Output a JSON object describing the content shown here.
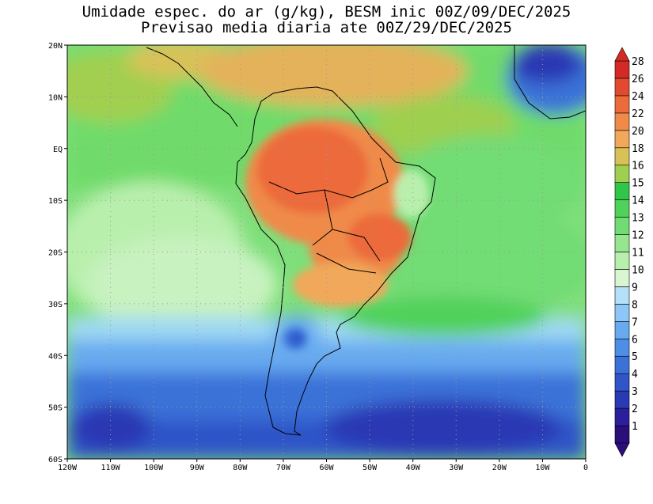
{
  "title": {
    "line1": "Umidade espec. do ar (g/kg), BESM inic 00Z/09/DEC/2025",
    "line2": "Previsao media diaria ate 00Z/29/DEC/2025"
  },
  "map": {
    "lon_ticks": [
      "120W",
      "110W",
      "100W",
      "90W",
      "80W",
      "70W",
      "60W",
      "50W",
      "40W",
      "30W",
      "20W",
      "10W",
      "0"
    ],
    "lat_ticks": [
      "20N",
      "10N",
      "EQ",
      "10S",
      "20S",
      "30S",
      "40S",
      "50S",
      "60S"
    ],
    "lon_range": [
      -120,
      0
    ],
    "lat_range": [
      -60,
      20
    ],
    "grid": "dotted"
  },
  "colorbar": {
    "labels": [
      "1",
      "2",
      "3",
      "4",
      "5",
      "6",
      "7",
      "8",
      "9",
      "10",
      "11",
      "12",
      "13",
      "14",
      "15",
      "16",
      "18",
      "20",
      "22",
      "24",
      "26",
      "28"
    ],
    "colors": [
      "#2a0e7a",
      "#2b1f9c",
      "#2a39b4",
      "#2f55c8",
      "#3a72d8",
      "#4d8fe6",
      "#67aaf0",
      "#8cc7f7",
      "#b4e0fa",
      "#d9f5d2",
      "#b9efad",
      "#96e690",
      "#72dc74",
      "#4fd15a",
      "#2fc64a",
      "#9fcf4f",
      "#d8c258",
      "#f1a85a",
      "#f08a49",
      "#ec6b3b",
      "#e24a2f",
      "#d42a25"
    ]
  }
}
